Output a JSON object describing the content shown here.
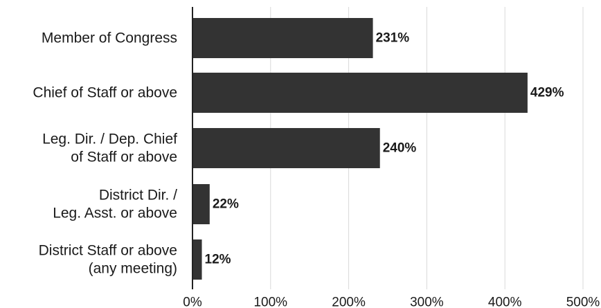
{
  "chart_data": {
    "type": "bar",
    "orientation": "horizontal",
    "title": "",
    "xlabel": "",
    "ylabel": "",
    "categories": [
      [
        "Member of Congress"
      ],
      [
        "Chief of Staff or above"
      ],
      [
        "Leg. Dir. / Dep. Chief",
        "of Staff or above"
      ],
      [
        "District Dir. /",
        "Leg. Asst. or above"
      ],
      [
        "District Staff or above",
        "(any meeting)"
      ]
    ],
    "values": [
      231,
      429,
      240,
      22,
      12
    ],
    "data_labels": [
      "231%",
      "429%",
      "240%",
      "22%",
      "12%"
    ],
    "x_ticks": [
      0,
      100,
      200,
      300,
      400,
      500
    ],
    "x_tick_labels": [
      "0%",
      "100%",
      "200%",
      "300%",
      "400%",
      "500%"
    ],
    "xlim": [
      0,
      500
    ],
    "grid": "vertical",
    "legend": "none",
    "colors": {
      "bar": "#333333",
      "grid": "#d9d9d9",
      "axis": "#222222",
      "text": "#1a1a1a"
    }
  }
}
